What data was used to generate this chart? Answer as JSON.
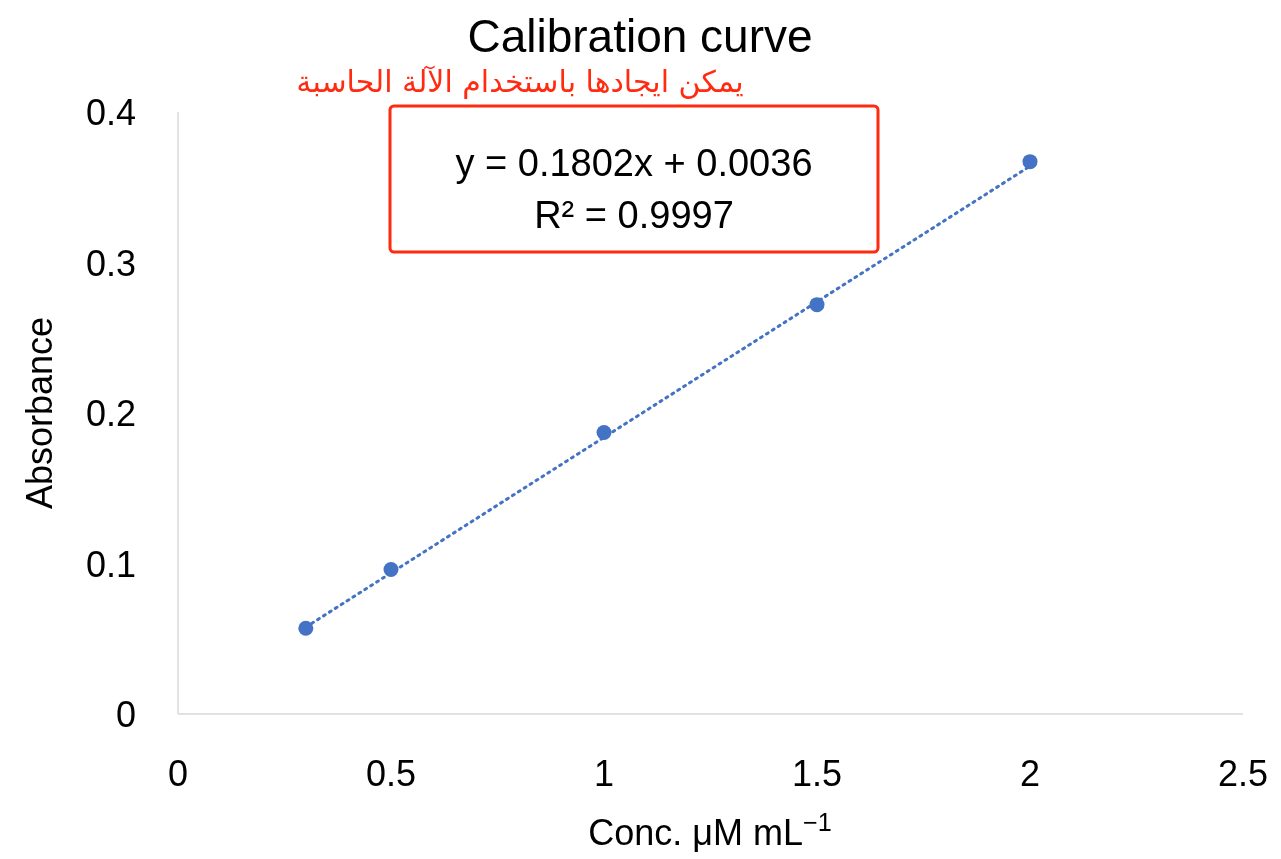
{
  "chart_data": {
    "type": "scatter",
    "title": "Calibration curve",
    "xlabel": "Conc. μM mL$^{−1}$",
    "ylabel": "Absorbance",
    "xlim": [
      0,
      2.5
    ],
    "ylim": [
      0,
      0.4
    ],
    "xticks": [
      0,
      0.5,
      1,
      1.5,
      2,
      2.5
    ],
    "yticks": [
      0,
      0.1,
      0.2,
      0.3,
      0.4
    ],
    "grid": false,
    "series": [
      {
        "color": "#4472c4",
        "marker": "circle",
        "x": [
          0.3,
          0.5,
          1,
          1.5,
          2
        ],
        "values": [
          0.057,
          0.096,
          0.187,
          0.272,
          0.367
        ]
      },
      {
        "type": "line",
        "color": "#4472c4",
        "line_style": "dotted",
        "marker": "none",
        "x": [
          0.3,
          2
        ],
        "values": [
          0.0577,
          0.364
        ]
      }
    ],
    "annotations": [
      "y = 0.1802x + 0.0036",
      "R² = 0.9997",
      "يمكن ايجادها باستخدام الآلة الحاسبة"
    ]
  }
}
